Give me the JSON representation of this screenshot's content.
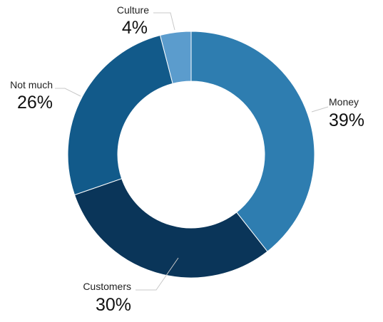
{
  "chart_data": {
    "type": "pie",
    "variant": "donut",
    "slices": [
      {
        "label": "Money",
        "value": 39,
        "value_label": "39%",
        "color": "#2e7db0"
      },
      {
        "label": "Customers",
        "value": 30,
        "value_label": "30%",
        "color": "#0a3559"
      },
      {
        "label": "Not much",
        "value": 26,
        "value_label": "26%",
        "color": "#125a8a"
      },
      {
        "label": "Culture",
        "value": 4,
        "value_label": "4%",
        "color": "#5b9ccd"
      }
    ],
    "start": "top",
    "direction": "clockwise",
    "legend": "none"
  }
}
